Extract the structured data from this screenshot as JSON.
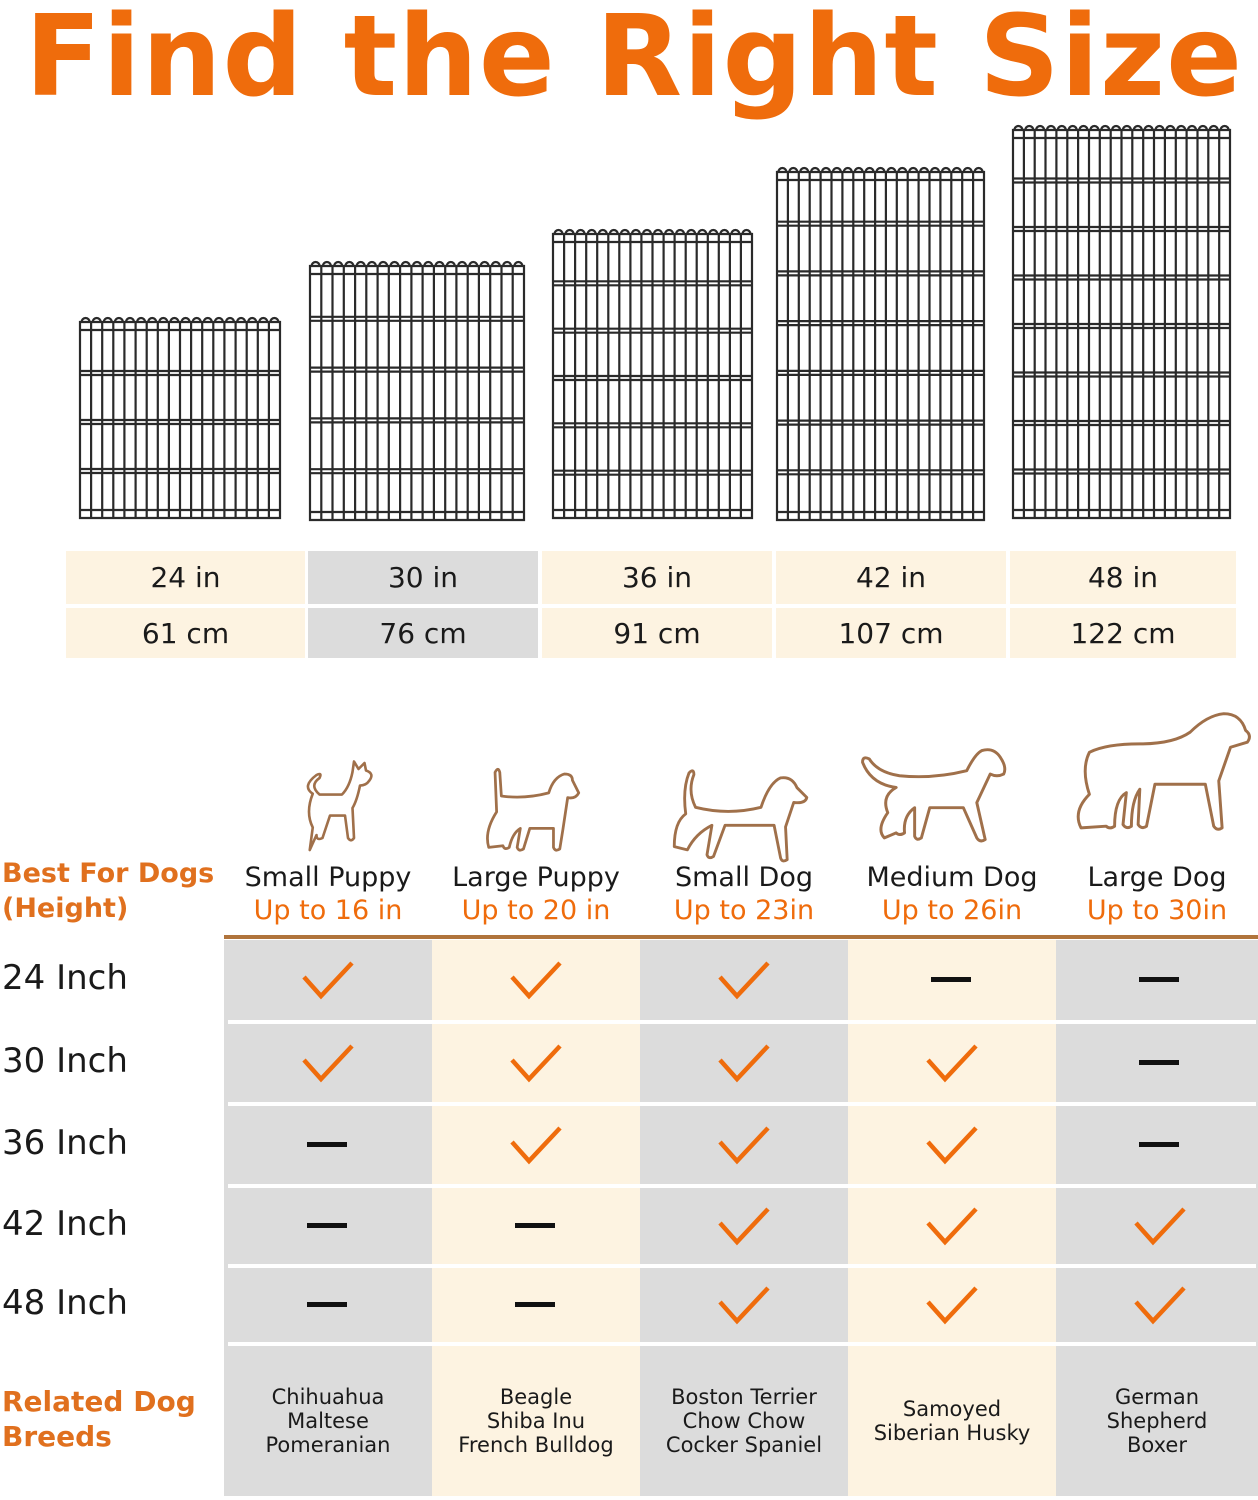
{
  "title": "Find the Right Size",
  "colors": {
    "accent": "#ef6c0c",
    "dog_outline": "#a0704a",
    "cream": "#fdf3e1",
    "gray": "#dcdcdc",
    "divider": "#b0743c"
  },
  "sizes": [
    {
      "inch": "24 in",
      "cm": "61 cm"
    },
    {
      "inch": "30 in",
      "cm": "76 cm"
    },
    {
      "inch": "36 in",
      "cm": "91 cm"
    },
    {
      "inch": "42 in",
      "cm": "107 cm"
    },
    {
      "inch": "48 in",
      "cm": "122 cm"
    }
  ],
  "best_for_label_1": "Best For Dogs",
  "best_for_label_2": "(Height)",
  "dogs": [
    {
      "name": "Small Puppy",
      "height": "Up to 16 in",
      "icon": "chihuahua-outline-icon"
    },
    {
      "name": "Large Puppy",
      "height": "Up to 20 in",
      "icon": "terrier-outline-icon"
    },
    {
      "name": "Small Dog",
      "height": "Up to 23in",
      "icon": "beagle-outline-icon"
    },
    {
      "name": "Medium Dog",
      "height": "Up to 26in",
      "icon": "husky-outline-icon"
    },
    {
      "name": "Large Dog",
      "height": "Up to 30in",
      "icon": "mastiff-outline-icon"
    }
  ],
  "rows": [
    {
      "label": "24 Inch",
      "fit": [
        true,
        true,
        true,
        false,
        false
      ]
    },
    {
      "label": "30 Inch",
      "fit": [
        true,
        true,
        true,
        true,
        false
      ]
    },
    {
      "label": "36 Inch",
      "fit": [
        false,
        true,
        true,
        true,
        false
      ]
    },
    {
      "label": "42 Inch",
      "fit": [
        false,
        false,
        true,
        true,
        true
      ]
    },
    {
      "label": "48 Inch",
      "fit": [
        false,
        false,
        true,
        true,
        true
      ]
    }
  ],
  "related_label_1": "Related Dog",
  "related_label_2": "Breeds",
  "breeds": [
    [
      "Chihuahua",
      "Maltese",
      "Pomeranian"
    ],
    [
      "Beagle",
      "Shiba Inu",
      "French Bulldog"
    ],
    [
      "Boston Terrier",
      "Chow Chow",
      "Cocker Spaniel"
    ],
    [
      "Samoyed",
      "Siberian Husky"
    ],
    [
      "German",
      "Shepherd",
      "Boxer"
    ]
  ]
}
